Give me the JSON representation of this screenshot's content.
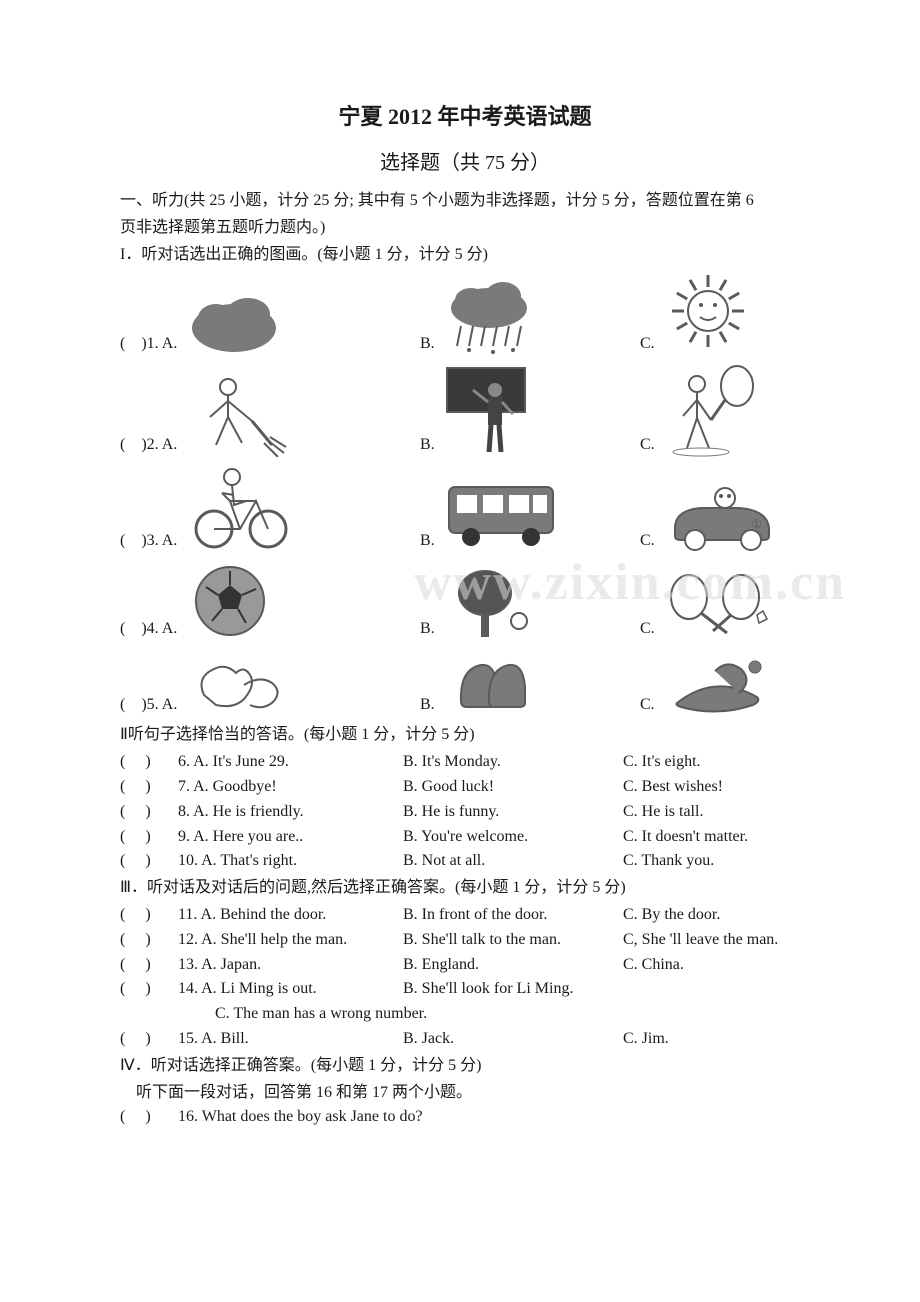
{
  "title": "宁夏 2012 年中考英语试题",
  "subtitle": "选择题（共 75 分）",
  "intro_line1": "一、听力(共 25 小题，计分 25 分; 其中有 5 个小题为非选择题，计分 5 分，答题位置在第 6",
  "intro_line2": "页非选择题第五题听力题内。)",
  "sectionI": "I．听对话选出正确的图画。(每小题 1 分，计分 5 分)",
  "imgQuestions": [
    {
      "num": "1",
      "icons": [
        "cloud",
        "rain-cloud",
        "sun"
      ]
    },
    {
      "num": "2",
      "icons": [
        "sweeper",
        "teacher",
        "tennis"
      ]
    },
    {
      "num": "3",
      "icons": [
        "bike",
        "bus",
        "car"
      ]
    },
    {
      "num": "4",
      "icons": [
        "football",
        "pingpong",
        "badminton"
      ]
    },
    {
      "num": "5",
      "icons": [
        "gloves",
        "shoes",
        "hat"
      ]
    }
  ],
  "sectionII": "Ⅱ听句子选择恰当的答语。(每小题 1 分，计分 5 分)",
  "textQII": [
    {
      "num": "6",
      "a": "A. It's June 29.",
      "b": "B. It's Monday.",
      "c": "C. It's eight."
    },
    {
      "num": "7",
      "a": "A. Goodbye!",
      "b": "B. Good luck!",
      "c": "C. Best wishes!"
    },
    {
      "num": "8",
      "a": "A. He is friendly.",
      "b": "B. He is funny.",
      "c": "C. He is tall."
    },
    {
      "num": "9",
      "a": "A. Here you are..",
      "b": "B. You're welcome.",
      "c": "C. It doesn't matter."
    },
    {
      "num": "10",
      "a": "A. That's right.",
      "b": "B. Not at all.",
      "c": "C. Thank you."
    }
  ],
  "sectionIII": "Ⅲ．听对话及对话后的问题,然后选择正确答案。(每小题 1 分，计分 5 分)",
  "textQIII": [
    {
      "num": "11",
      "a": "A. Behind the door.",
      "b": "B. In front of the door.",
      "c": "C. By the door."
    },
    {
      "num": "12",
      "a": "A. She'll help the man.",
      "b": "B. She'll talk to the man.",
      "c": "C, She 'll leave the man."
    },
    {
      "num": "13",
      "a": "A. Japan.",
      "b": "B. England.",
      "c": "C. China."
    },
    {
      "num": "14",
      "a": "A. Li Ming is out.",
      "b": "B. She'll look for Li Ming.",
      "c": "",
      "wrap": "C. The man has a wrong number."
    },
    {
      "num": "15",
      "a": "A. Bill.",
      "b": "B. Jack.",
      "c": "C. Jim."
    }
  ],
  "sectionIV": "Ⅳ．听对话选择正确答案。(每小题 1 分，计分 5 分)",
  "sectionIV_sub": "听下面一段对话，回答第 16 和第 17 两个小题。",
  "q16": {
    "num": "16",
    "text": "16. What does the boy ask Jane to do?"
  },
  "labels": {
    "A": "A.",
    "B": "B.",
    "C": "C."
  },
  "paren_open": "(",
  "paren_close": ")",
  "watermark": "www.zixin.com.cn",
  "colors": {
    "text": "#1a1a1a",
    "bg": "#ffffff",
    "ink": "#5a5a5a",
    "ink2": "#7a7a7a"
  }
}
